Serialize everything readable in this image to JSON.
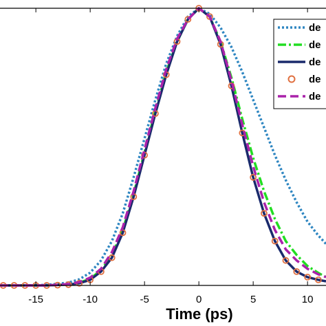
{
  "chart_data": {
    "type": "line",
    "title": "",
    "xlabel": "Time (ps)",
    "ylabel": "",
    "xlim": [
      -18.3,
      11.7
    ],
    "ylim": [
      0,
      1
    ],
    "x_ticks": [
      -15,
      -10,
      -5,
      0,
      5,
      10
    ],
    "x_tick_labels": [
      "-15",
      "-10",
      "-5",
      "0",
      "5",
      "10"
    ],
    "grid": false,
    "legend_position": "top-right",
    "series": [
      {
        "name": "de",
        "color": "#2e86c1",
        "style": "dotted",
        "x": [
          -18.3,
          -16,
          -14,
          -12,
          -11,
          -10,
          -9,
          -8,
          -7,
          -6,
          -5,
          -4,
          -3,
          -2,
          -1,
          0,
          1,
          2,
          3,
          4,
          5,
          6,
          7,
          8,
          9,
          10,
          11,
          11.7
        ],
        "y": [
          0.0,
          0.0,
          0.002,
          0.01,
          0.022,
          0.046,
          0.09,
          0.16,
          0.26,
          0.39,
          0.53,
          0.67,
          0.8,
          0.9,
          0.97,
          1.0,
          0.98,
          0.93,
          0.86,
          0.77,
          0.67,
          0.57,
          0.47,
          0.38,
          0.3,
          0.23,
          0.18,
          0.15
        ]
      },
      {
        "name": "de",
        "color": "#22dd22",
        "style": "dash-dot",
        "x": [
          -18.3,
          -16,
          -14,
          -12,
          -11,
          -10,
          -9,
          -8,
          -7,
          -6,
          -5,
          -4,
          -3,
          -2,
          -1,
          0,
          1,
          2,
          3,
          4,
          5,
          6,
          7,
          8,
          9,
          10,
          11,
          11.7
        ],
        "y": [
          0.0,
          0.0,
          0.0,
          0.004,
          0.01,
          0.024,
          0.055,
          0.11,
          0.2,
          0.33,
          0.48,
          0.63,
          0.77,
          0.88,
          0.96,
          1.0,
          0.97,
          0.88,
          0.75,
          0.6,
          0.46,
          0.34,
          0.24,
          0.16,
          0.11,
          0.07,
          0.045,
          0.03
        ]
      },
      {
        "name": "de",
        "color": "#1a2a6c",
        "style": "solid",
        "x": [
          -18.3,
          -16,
          -14,
          -12,
          -11,
          -10,
          -9,
          -8,
          -7,
          -6,
          -5,
          -4,
          -3,
          -2,
          -1,
          0,
          1,
          2,
          3,
          4,
          5,
          6,
          7,
          8,
          9,
          10,
          11,
          11.7
        ],
        "y": [
          0.0,
          0.0,
          0.0,
          0.003,
          0.008,
          0.02,
          0.05,
          0.1,
          0.19,
          0.32,
          0.47,
          0.62,
          0.76,
          0.88,
          0.96,
          1.0,
          0.97,
          0.87,
          0.72,
          0.55,
          0.39,
          0.26,
          0.16,
          0.09,
          0.05,
          0.03,
          0.02,
          0.015
        ]
      },
      {
        "name": "de",
        "color": "#e07040",
        "style": "markers",
        "x": [
          -18,
          -17,
          -16,
          -15,
          -14,
          -13,
          -12,
          -11,
          -10,
          -9,
          -8,
          -7,
          -6,
          -5,
          -4,
          -3,
          -2,
          -1,
          0,
          1,
          2,
          3,
          4,
          5,
          6,
          7,
          8,
          9,
          10,
          11
        ],
        "y": [
          0.0,
          0.0,
          0.0,
          0.0,
          0.0,
          0.001,
          0.003,
          0.008,
          0.02,
          0.05,
          0.1,
          0.19,
          0.32,
          0.47,
          0.62,
          0.76,
          0.88,
          0.96,
          1.0,
          0.97,
          0.87,
          0.72,
          0.55,
          0.39,
          0.26,
          0.16,
          0.09,
          0.05,
          0.03,
          0.02
        ]
      },
      {
        "name": "de",
        "color": "#aa22aa",
        "style": "dashed",
        "x": [
          -18.3,
          -16,
          -14,
          -12,
          -11,
          -10,
          -9,
          -8,
          -7,
          -6,
          -5,
          -4,
          -3,
          -2,
          -1,
          0,
          1,
          2,
          3,
          4,
          5,
          6,
          7,
          8,
          9,
          10,
          11,
          11.7
        ],
        "y": [
          0.0,
          0.0,
          0.0,
          0.005,
          0.012,
          0.028,
          0.06,
          0.12,
          0.21,
          0.34,
          0.49,
          0.64,
          0.78,
          0.89,
          0.96,
          1.0,
          0.97,
          0.88,
          0.74,
          0.58,
          0.43,
          0.3,
          0.2,
          0.13,
          0.09,
          0.06,
          0.04,
          0.03
        ]
      }
    ]
  }
}
